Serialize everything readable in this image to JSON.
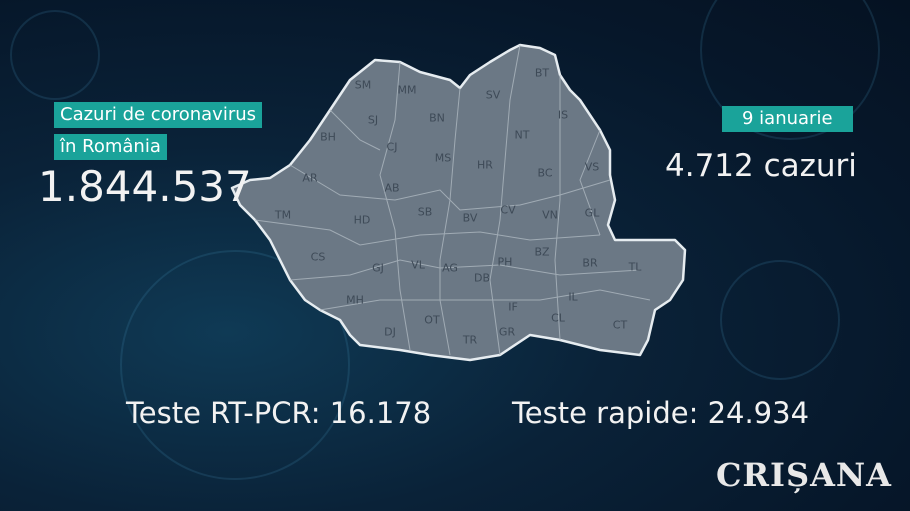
{
  "left_panel": {
    "title_line1": "Cazuri de coronavirus",
    "title_line2": "în România",
    "total_cases": "1.844.537"
  },
  "right_panel": {
    "date": "9 ianuarie",
    "daily_cases": "4.712 cazuri"
  },
  "tests": {
    "rt_pcr": "Teste RT-PCR: 16.178",
    "rapid": "Teste rapide: 24.934"
  },
  "map": {
    "fill_color": "#6b7885",
    "border_color": "#e6ecf0",
    "counties": [
      "SM",
      "MM",
      "BT",
      "SV",
      "IS",
      "BN",
      "SJ",
      "BH",
      "CJ",
      "NT",
      "MS",
      "HR",
      "VS",
      "BC",
      "AR",
      "AB",
      "SB",
      "BV",
      "CV",
      "VN",
      "GL",
      "TM",
      "HD",
      "CS",
      "GJ",
      "VL",
      "AG",
      "DB",
      "PH",
      "BZ",
      "BR",
      "TL",
      "MH",
      "IF",
      "IL",
      "DJ",
      "OT",
      "TR",
      "GR",
      "CL",
      "CT"
    ]
  },
  "logo": "CRIȘANA",
  "colors": {
    "accent": "#1aa39a",
    "background": "#0a2238"
  }
}
